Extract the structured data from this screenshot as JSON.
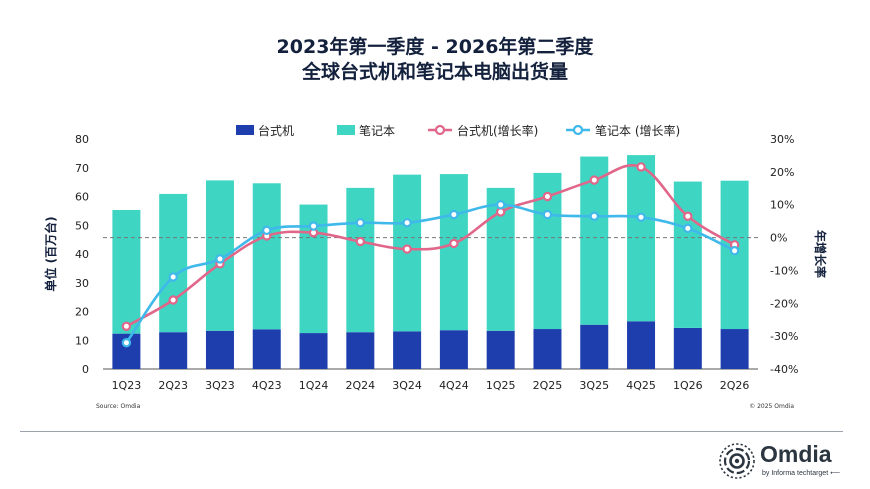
{
  "title_line1": "2023年第一季度 - 2026年第二季度",
  "title_line2": "全球台式机和笔记本电脑出货量",
  "source": "Source: Omdia",
  "copyright": "© 2025 Omdia",
  "logo": {
    "word": "Omdia",
    "tagline": "by Informa techtarget ⟵"
  },
  "colors": {
    "desktop_bar": "#1f3eae",
    "notebook_bar": "#3ed6c3",
    "desktop_growth": "#e0668a",
    "notebook_growth": "#3fb8ea",
    "text": "#14213d"
  },
  "chart_data": {
    "type": "bar",
    "stacked": true,
    "categories": [
      "1Q23",
      "2Q23",
      "3Q23",
      "4Q23",
      "1Q24",
      "2Q24",
      "3Q24",
      "4Q24",
      "1Q25",
      "2Q25",
      "3Q25",
      "4Q25",
      "1Q26",
      "2Q26"
    ],
    "series": [
      {
        "name": "台式机",
        "type": "bar",
        "axis": "left",
        "values": [
          12.3,
          12.8,
          13.3,
          13.8,
          12.5,
          12.8,
          13.1,
          13.5,
          13.3,
          13.9,
          15.4,
          16.6,
          14.3,
          13.9
        ]
      },
      {
        "name": "笔记本",
        "type": "bar",
        "axis": "left",
        "values": [
          43.0,
          48.1,
          52.3,
          50.8,
          44.7,
          50.2,
          54.5,
          54.3,
          49.7,
          54.3,
          58.5,
          57.8,
          50.9,
          51.6
        ]
      },
      {
        "name": "台式机(增长率)",
        "type": "line",
        "axis": "right",
        "values": [
          -27,
          -19,
          -8,
          0.5,
          1.5,
          -1.2,
          -3.5,
          -1.8,
          7.8,
          12.5,
          17.5,
          21.5,
          6.5,
          -2.2
        ]
      },
      {
        "name": "笔记本 (增长率)",
        "type": "line",
        "axis": "right",
        "values": [
          -32,
          -12,
          -6.5,
          2.2,
          3.5,
          4.5,
          4.5,
          7,
          10,
          7,
          6.5,
          6.2,
          2.8,
          -4
        ]
      }
    ],
    "ylabel": "单位 (百万台)",
    "ylim": [
      0,
      80
    ],
    "yticks": [
      "0",
      "10",
      "20",
      "30",
      "40",
      "50",
      "60",
      "70",
      "80"
    ],
    "y2label": "年增长率",
    "y2lim": [
      -40,
      30
    ],
    "y2ticks": [
      "-40%",
      "-30%",
      "-20%",
      "-10%",
      "0%",
      "10%",
      "20%",
      "30%"
    ],
    "zero_reference_line": true,
    "grid": false,
    "legend_position": "top"
  }
}
